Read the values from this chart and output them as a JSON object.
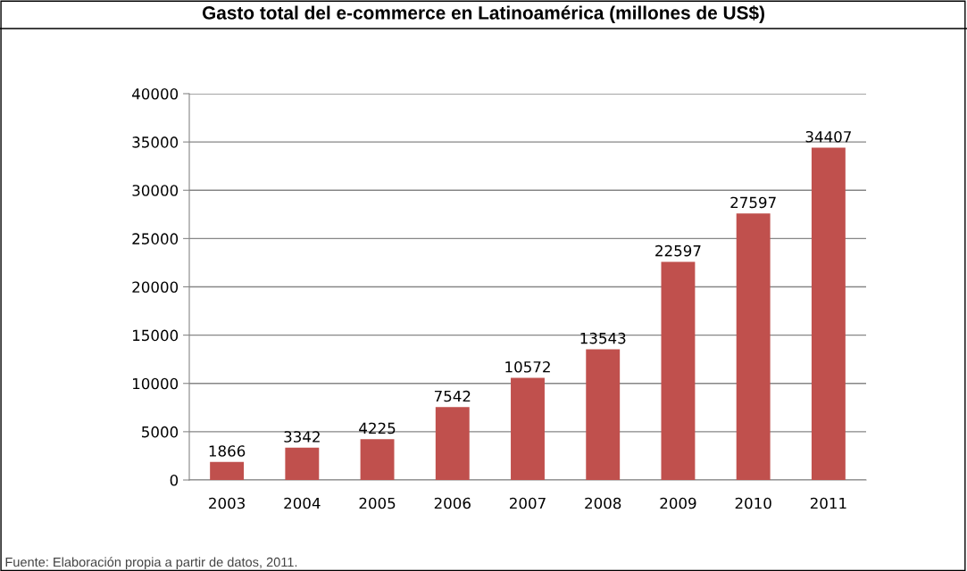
{
  "chart_data": {
    "type": "bar",
    "title": "Gasto total del e-commerce en Latinoamérica (millones de US$)",
    "categories": [
      "2003",
      "2004",
      "2005",
      "2006",
      "2007",
      "2008",
      "2009",
      "2010",
      "2011"
    ],
    "values": [
      1866,
      3342,
      4225,
      7542,
      10572,
      13543,
      22597,
      27597,
      34407
    ],
    "color": "#c0504d",
    "ylim": [
      0,
      40000
    ],
    "yticks": [
      0,
      5000,
      10000,
      15000,
      20000,
      25000,
      30000,
      35000,
      40000
    ],
    "grid": "y",
    "data_labels": true,
    "annotations": [
      "Fuente: Elaboración propia a partir de datos, 2011."
    ]
  }
}
